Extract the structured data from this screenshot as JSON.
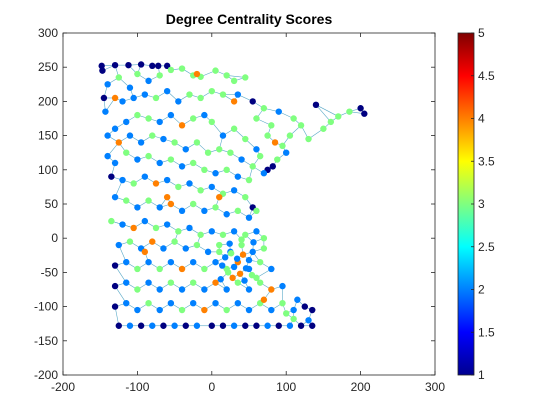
{
  "chart_data": {
    "type": "scatter",
    "title": "Degree Centrality Scores",
    "xlabel": "",
    "ylabel": "",
    "xlim": [
      -200,
      300
    ],
    "ylim": [
      -200,
      300
    ],
    "xticks": [
      "-200",
      "-100",
      "0",
      "100",
      "200",
      "300"
    ],
    "yticks": [
      "-200",
      "-150",
      "-100",
      "-50",
      "0",
      "50",
      "100",
      "150",
      "200",
      "250",
      "300"
    ],
    "grid": false,
    "colorbar": {
      "colormap": "jet",
      "clim": [
        1,
        5
      ],
      "ticks": [
        "1",
        "1.5",
        "2",
        "2.5",
        "3",
        "3.5",
        "4",
        "4.5",
        "5"
      ]
    },
    "edge_color": "#5aa9c7",
    "nodes": [
      {
        "x": -148,
        "y": 252,
        "v": 1
      },
      {
        "x": -147,
        "y": 245,
        "v": 1
      },
      {
        "x": -130,
        "y": 253,
        "v": 1
      },
      {
        "x": -112,
        "y": 253,
        "v": 1
      },
      {
        "x": -95,
        "y": 254,
        "v": 1
      },
      {
        "x": -80,
        "y": 252,
        "v": 1
      },
      {
        "x": -72,
        "y": 252,
        "v": 1
      },
      {
        "x": -60,
        "y": 252,
        "v": 1
      },
      {
        "x": -140,
        "y": 225,
        "v": 2
      },
      {
        "x": -145,
        "y": 205,
        "v": 1
      },
      {
        "x": -143,
        "y": 185,
        "v": 2
      },
      {
        "x": -125,
        "y": 235,
        "v": 3
      },
      {
        "x": -110,
        "y": 220,
        "v": 2
      },
      {
        "x": -100,
        "y": 240,
        "v": 3
      },
      {
        "x": -85,
        "y": 230,
        "v": 2
      },
      {
        "x": -70,
        "y": 238,
        "v": 3
      },
      {
        "x": -55,
        "y": 246,
        "v": 3
      },
      {
        "x": -40,
        "y": 248,
        "v": 3
      },
      {
        "x": -25,
        "y": 238,
        "v": 3
      },
      {
        "x": -15,
        "y": 236,
        "v": 3
      },
      {
        "x": -130,
        "y": 205,
        "v": 4
      },
      {
        "x": -120,
        "y": 200,
        "v": 2
      },
      {
        "x": -105,
        "y": 205,
        "v": 2
      },
      {
        "x": -90,
        "y": 210,
        "v": 2
      },
      {
        "x": -75,
        "y": 205,
        "v": 3
      },
      {
        "x": -60,
        "y": 215,
        "v": 2
      },
      {
        "x": -45,
        "y": 200,
        "v": 2
      },
      {
        "x": -30,
        "y": 210,
        "v": 3
      },
      {
        "x": -15,
        "y": 205,
        "v": 3
      },
      {
        "x": 0,
        "y": 215,
        "v": 3
      },
      {
        "x": 15,
        "y": 210,
        "v": 3
      },
      {
        "x": 30,
        "y": 230,
        "v": 3
      },
      {
        "x": 35,
        "y": 210,
        "v": 2
      },
      {
        "x": 45,
        "y": 235,
        "v": 3
      },
      {
        "x": 55,
        "y": 200,
        "v": 1
      },
      {
        "x": 70,
        "y": 190,
        "v": 3
      },
      {
        "x": 60,
        "y": 175,
        "v": 3
      },
      {
        "x": 5,
        "y": 245,
        "v": 3
      },
      {
        "x": 20,
        "y": 238,
        "v": 3
      },
      {
        "x": 105,
        "y": 150,
        "v": 3
      },
      {
        "x": 140,
        "y": 195,
        "v": 1
      },
      {
        "x": 130,
        "y": 145,
        "v": 3
      },
      {
        "x": 150,
        "y": 160,
        "v": 3
      },
      {
        "x": 160,
        "y": 170,
        "v": 3
      },
      {
        "x": 170,
        "y": 178,
        "v": 3
      },
      {
        "x": 185,
        "y": 185,
        "v": 3
      },
      {
        "x": 200,
        "y": 190,
        "v": 1
      },
      {
        "x": 205,
        "y": 182,
        "v": 1
      },
      {
        "x": 120,
        "y": 165,
        "v": 3
      },
      {
        "x": 110,
        "y": 175,
        "v": 3
      },
      {
        "x": 90,
        "y": 185,
        "v": 2
      },
      {
        "x": 95,
        "y": 135,
        "v": 3
      },
      {
        "x": 85,
        "y": 140,
        "v": 4
      },
      {
        "x": 80,
        "y": 165,
        "v": 3
      },
      {
        "x": 75,
        "y": 150,
        "v": 3
      },
      {
        "x": 88,
        "y": 115,
        "v": 3
      },
      {
        "x": 82,
        "y": 105,
        "v": 1
      },
      {
        "x": 75,
        "y": 100,
        "v": 1
      },
      {
        "x": 70,
        "y": 95,
        "v": 2
      },
      {
        "x": 60,
        "y": 130,
        "v": 2
      },
      {
        "x": 45,
        "y": 145,
        "v": 3
      },
      {
        "x": 30,
        "y": 160,
        "v": 3
      },
      {
        "x": 15,
        "y": 150,
        "v": 2
      },
      {
        "x": 0,
        "y": 170,
        "v": 3
      },
      {
        "x": -10,
        "y": 180,
        "v": 2
      },
      {
        "x": -25,
        "y": 175,
        "v": 3
      },
      {
        "x": -40,
        "y": 165,
        "v": 4
      },
      {
        "x": -55,
        "y": 180,
        "v": 2
      },
      {
        "x": -70,
        "y": 170,
        "v": 2
      },
      {
        "x": -85,
        "y": 175,
        "v": 3
      },
      {
        "x": -100,
        "y": 180,
        "v": 3
      },
      {
        "x": -115,
        "y": 170,
        "v": 2
      },
      {
        "x": -130,
        "y": 160,
        "v": 2
      },
      {
        "x": -140,
        "y": 150,
        "v": 2
      },
      {
        "x": -125,
        "y": 140,
        "v": 4
      },
      {
        "x": -110,
        "y": 150,
        "v": 2
      },
      {
        "x": -95,
        "y": 140,
        "v": 2
      },
      {
        "x": -80,
        "y": 150,
        "v": 3
      },
      {
        "x": -65,
        "y": 145,
        "v": 2
      },
      {
        "x": -50,
        "y": 140,
        "v": 3
      },
      {
        "x": -35,
        "y": 130,
        "v": 2
      },
      {
        "x": -20,
        "y": 140,
        "v": 3
      },
      {
        "x": -5,
        "y": 125,
        "v": 3
      },
      {
        "x": 10,
        "y": 130,
        "v": 3
      },
      {
        "x": 25,
        "y": 125,
        "v": 3
      },
      {
        "x": 40,
        "y": 115,
        "v": 2
      },
      {
        "x": 55,
        "y": 105,
        "v": 3
      },
      {
        "x": -140,
        "y": 120,
        "v": 2
      },
      {
        "x": -130,
        "y": 110,
        "v": 2
      },
      {
        "x": -115,
        "y": 125,
        "v": 3
      },
      {
        "x": -100,
        "y": 115,
        "v": 2
      },
      {
        "x": -85,
        "y": 120,
        "v": 3
      },
      {
        "x": -70,
        "y": 110,
        "v": 2
      },
      {
        "x": -55,
        "y": 115,
        "v": 3
      },
      {
        "x": -40,
        "y": 105,
        "v": 2
      },
      {
        "x": -25,
        "y": 110,
        "v": 3
      },
      {
        "x": -10,
        "y": 100,
        "v": 3
      },
      {
        "x": 5,
        "y": 95,
        "v": 2
      },
      {
        "x": 20,
        "y": 100,
        "v": 3
      },
      {
        "x": 35,
        "y": 90,
        "v": 2
      },
      {
        "x": 50,
        "y": 85,
        "v": 3
      },
      {
        "x": -135,
        "y": 90,
        "v": 1
      },
      {
        "x": -120,
        "y": 85,
        "v": 2
      },
      {
        "x": -105,
        "y": 80,
        "v": 3
      },
      {
        "x": -90,
        "y": 90,
        "v": 2
      },
      {
        "x": -75,
        "y": 80,
        "v": 4
      },
      {
        "x": -60,
        "y": 85,
        "v": 2
      },
      {
        "x": -45,
        "y": 75,
        "v": 3
      },
      {
        "x": -30,
        "y": 80,
        "v": 2
      },
      {
        "x": -15,
        "y": 70,
        "v": 3
      },
      {
        "x": 0,
        "y": 75,
        "v": 2
      },
      {
        "x": 15,
        "y": 65,
        "v": 3
      },
      {
        "x": 30,
        "y": 70,
        "v": 2
      },
      {
        "x": 45,
        "y": 60,
        "v": 3
      },
      {
        "x": 55,
        "y": 45,
        "v": 1
      },
      {
        "x": -130,
        "y": 60,
        "v": 2
      },
      {
        "x": -115,
        "y": 55,
        "v": 3
      },
      {
        "x": -100,
        "y": 45,
        "v": 2
      },
      {
        "x": -85,
        "y": 55,
        "v": 3
      },
      {
        "x": -70,
        "y": 45,
        "v": 2
      },
      {
        "x": -55,
        "y": 50,
        "v": 4
      },
      {
        "x": -40,
        "y": 40,
        "v": 2
      },
      {
        "x": -25,
        "y": 50,
        "v": 3
      },
      {
        "x": -10,
        "y": 40,
        "v": 2
      },
      {
        "x": 5,
        "y": 45,
        "v": 3
      },
      {
        "x": 20,
        "y": 35,
        "v": 2
      },
      {
        "x": 35,
        "y": 40,
        "v": 3
      },
      {
        "x": 50,
        "y": 30,
        "v": 2
      },
      {
        "x": 60,
        "y": 40,
        "v": 3
      },
      {
        "x": -135,
        "y": 25,
        "v": 3
      },
      {
        "x": -120,
        "y": 20,
        "v": 2
      },
      {
        "x": -105,
        "y": 15,
        "v": 4
      },
      {
        "x": -90,
        "y": 25,
        "v": 2
      },
      {
        "x": -75,
        "y": 15,
        "v": 3
      },
      {
        "x": -60,
        "y": 20,
        "v": 2
      },
      {
        "x": -45,
        "y": 10,
        "v": 3
      },
      {
        "x": -30,
        "y": 15,
        "v": 2
      },
      {
        "x": -15,
        "y": 5,
        "v": 3
      },
      {
        "x": 0,
        "y": 10,
        "v": 2
      },
      {
        "x": 15,
        "y": 5,
        "v": 3
      },
      {
        "x": 30,
        "y": 10,
        "v": 2
      },
      {
        "x": 45,
        "y": 5,
        "v": 3
      },
      {
        "x": 60,
        "y": 10,
        "v": 2
      },
      {
        "x": 70,
        "y": 0,
        "v": 3
      },
      {
        "x": -125,
        "y": -10,
        "v": 2
      },
      {
        "x": -110,
        "y": -5,
        "v": 3
      },
      {
        "x": -95,
        "y": -15,
        "v": 2
      },
      {
        "x": -80,
        "y": -5,
        "v": 4
      },
      {
        "x": -65,
        "y": -15,
        "v": 2
      },
      {
        "x": -50,
        "y": -5,
        "v": 3
      },
      {
        "x": -35,
        "y": -15,
        "v": 2
      },
      {
        "x": -20,
        "y": -10,
        "v": 3
      },
      {
        "x": -5,
        "y": -20,
        "v": 2
      },
      {
        "x": 10,
        "y": -10,
        "v": 3
      },
      {
        "x": 25,
        "y": -20,
        "v": 2
      },
      {
        "x": 40,
        "y": -10,
        "v": 3
      },
      {
        "x": 55,
        "y": -20,
        "v": 2
      },
      {
        "x": 70,
        "y": -15,
        "v": 3
      },
      {
        "x": -130,
        "y": -40,
        "v": 1
      },
      {
        "x": -115,
        "y": -35,
        "v": 2
      },
      {
        "x": -100,
        "y": -45,
        "v": 3
      },
      {
        "x": -85,
        "y": -35,
        "v": 2
      },
      {
        "x": -70,
        "y": -45,
        "v": 3
      },
      {
        "x": -55,
        "y": -35,
        "v": 2
      },
      {
        "x": -40,
        "y": -45,
        "v": 4
      },
      {
        "x": -25,
        "y": -35,
        "v": 2
      },
      {
        "x": -10,
        "y": -45,
        "v": 3
      },
      {
        "x": 5,
        "y": -35,
        "v": 2
      },
      {
        "x": 20,
        "y": -45,
        "v": 3
      },
      {
        "x": 35,
        "y": -35,
        "v": 4
      },
      {
        "x": 50,
        "y": -45,
        "v": 2
      },
      {
        "x": 65,
        "y": -35,
        "v": 3
      },
      {
        "x": 80,
        "y": -45,
        "v": 2
      },
      {
        "x": -130,
        "y": -70,
        "v": 1
      },
      {
        "x": -115,
        "y": -65,
        "v": 2
      },
      {
        "x": -100,
        "y": -75,
        "v": 3
      },
      {
        "x": -85,
        "y": -65,
        "v": 2
      },
      {
        "x": -70,
        "y": -75,
        "v": 2
      },
      {
        "x": -55,
        "y": -65,
        "v": 3
      },
      {
        "x": -40,
        "y": -75,
        "v": 2
      },
      {
        "x": -25,
        "y": -65,
        "v": 3
      },
      {
        "x": -10,
        "y": -75,
        "v": 2
      },
      {
        "x": 5,
        "y": -65,
        "v": 4
      },
      {
        "x": 20,
        "y": -75,
        "v": 2
      },
      {
        "x": 35,
        "y": -65,
        "v": 3
      },
      {
        "x": 50,
        "y": -75,
        "v": 2
      },
      {
        "x": 65,
        "y": -65,
        "v": 3
      },
      {
        "x": 80,
        "y": -75,
        "v": 4
      },
      {
        "x": 95,
        "y": -70,
        "v": 2
      },
      {
        "x": -130,
        "y": -100,
        "v": 1
      },
      {
        "x": -115,
        "y": -95,
        "v": 2
      },
      {
        "x": -100,
        "y": -105,
        "v": 2
      },
      {
        "x": -85,
        "y": -95,
        "v": 3
      },
      {
        "x": -70,
        "y": -105,
        "v": 2
      },
      {
        "x": -55,
        "y": -95,
        "v": 2
      },
      {
        "x": -40,
        "y": -105,
        "v": 3
      },
      {
        "x": -25,
        "y": -95,
        "v": 2
      },
      {
        "x": -10,
        "y": -105,
        "v": 4
      },
      {
        "x": 5,
        "y": -95,
        "v": 2
      },
      {
        "x": 20,
        "y": -105,
        "v": 3
      },
      {
        "x": 35,
        "y": -95,
        "v": 2
      },
      {
        "x": 50,
        "y": -105,
        "v": 2
      },
      {
        "x": 65,
        "y": -95,
        "v": 3
      },
      {
        "x": 80,
        "y": -105,
        "v": 2
      },
      {
        "x": 95,
        "y": -95,
        "v": 3
      },
      {
        "x": 110,
        "y": -105,
        "v": 2
      },
      {
        "x": 125,
        "y": -100,
        "v": 1
      },
      {
        "x": 135,
        "y": -105,
        "v": 1
      },
      {
        "x": 130,
        "y": -120,
        "v": 2
      },
      {
        "x": 110,
        "y": -118,
        "v": 3
      },
      {
        "x": -125,
        "y": -128,
        "v": 1
      },
      {
        "x": -110,
        "y": -128,
        "v": 2
      },
      {
        "x": -95,
        "y": -128,
        "v": 1
      },
      {
        "x": -80,
        "y": -128,
        "v": 2
      },
      {
        "x": -65,
        "y": -128,
        "v": 1
      },
      {
        "x": -50,
        "y": -128,
        "v": 2
      },
      {
        "x": -35,
        "y": -128,
        "v": 1
      },
      {
        "x": -20,
        "y": -128,
        "v": 2
      },
      {
        "x": 0,
        "y": -128,
        "v": 1
      },
      {
        "x": 15,
        "y": -128,
        "v": 1
      },
      {
        "x": 30,
        "y": -128,
        "v": 2
      },
      {
        "x": 45,
        "y": -128,
        "v": 1
      },
      {
        "x": 60,
        "y": -128,
        "v": 1
      },
      {
        "x": 75,
        "y": -128,
        "v": 2
      },
      {
        "x": 90,
        "y": -128,
        "v": 1
      },
      {
        "x": 105,
        "y": -128,
        "v": 2
      },
      {
        "x": 120,
        "y": -128,
        "v": 1
      },
      {
        "x": 135,
        "y": -128,
        "v": 1
      },
      {
        "x": 10,
        "y": -20,
        "v": 3
      },
      {
        "x": 18,
        "y": -28,
        "v": 2
      },
      {
        "x": 26,
        "y": -22,
        "v": 3
      },
      {
        "x": 34,
        "y": -30,
        "v": 2
      },
      {
        "x": 42,
        "y": -24,
        "v": 4
      },
      {
        "x": 50,
        "y": -32,
        "v": 2
      },
      {
        "x": 14,
        "y": -40,
        "v": 2
      },
      {
        "x": 22,
        "y": -50,
        "v": 3
      },
      {
        "x": 30,
        "y": -42,
        "v": 2
      },
      {
        "x": 38,
        "y": -52,
        "v": 4
      },
      {
        "x": 46,
        "y": -44,
        "v": 2
      },
      {
        "x": 54,
        "y": -54,
        "v": 3
      },
      {
        "x": 12,
        "y": -60,
        "v": 2
      },
      {
        "x": 28,
        "y": -58,
        "v": 4
      },
      {
        "x": 44,
        "y": -62,
        "v": 2
      },
      {
        "x": 60,
        "y": -58,
        "v": 3
      },
      {
        "x": 24,
        "y": -8,
        "v": 2
      },
      {
        "x": 40,
        "y": -2,
        "v": 3
      },
      {
        "x": 56,
        "y": -6,
        "v": 2
      },
      {
        "x": -20,
        "y": 240,
        "v": 4
      },
      {
        "x": 30,
        "y": 200,
        "v": 4
      },
      {
        "x": -60,
        "y": 60,
        "v": 4
      },
      {
        "x": 10,
        "y": 60,
        "v": 4
      },
      {
        "x": -90,
        "y": -20,
        "v": 4
      },
      {
        "x": 70,
        "y": -90,
        "v": 4
      },
      {
        "x": 100,
        "y": -110,
        "v": 3
      },
      {
        "x": 115,
        "y": -90,
        "v": 2
      },
      {
        "x": 65,
        "y": 120,
        "v": 3
      },
      {
        "x": 100,
        "y": 125,
        "v": 2
      }
    ]
  }
}
